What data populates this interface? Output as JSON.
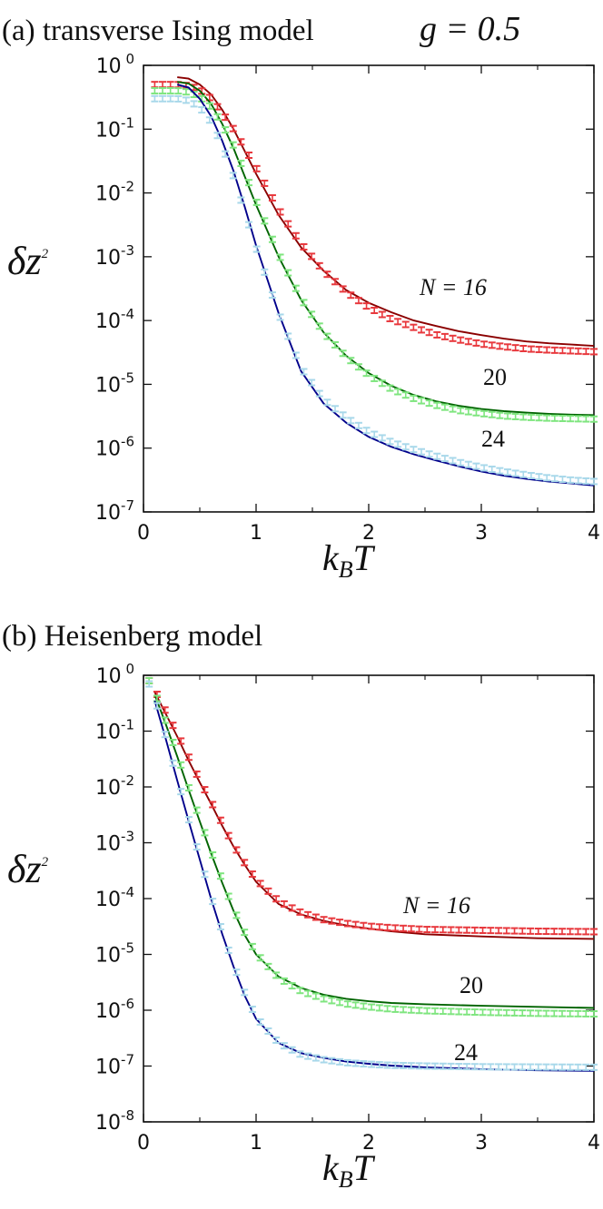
{
  "chart_data": [
    {
      "type": "line",
      "title": "(a) transverse Ising model",
      "subtitle": "g = 0.5",
      "xlabel": "k_B T",
      "ylabel": "δz²",
      "xlim": [
        0,
        4
      ],
      "ylim": [
        1e-07,
        1
      ],
      "yscale": "log",
      "grid": false,
      "x_ticks": [
        0,
        1,
        2,
        3,
        4
      ],
      "y_tick_exponents": [
        0,
        -1,
        -2,
        -3,
        -4,
        -5,
        -6,
        -7
      ],
      "annotations": [
        "N = 16",
        "20",
        "24"
      ],
      "series": [
        {
          "label": "N = 16",
          "kind": "theory",
          "color": "#8b0000",
          "x": [
            0.3,
            0.4,
            0.5,
            0.6,
            0.7,
            0.8,
            0.9,
            1.0,
            1.2,
            1.4,
            1.6,
            1.8,
            2.0,
            2.2,
            2.4,
            2.6,
            2.8,
            3.0,
            3.2,
            3.4,
            3.6,
            3.8,
            4.0
          ],
          "y": [
            0.65,
            0.62,
            0.5,
            0.35,
            0.2,
            0.1,
            0.045,
            0.02,
            0.0045,
            0.0014,
            0.0006,
            0.0003,
            0.00019,
            0.000135,
            0.0001,
            8.2e-05,
            6.8e-05,
            5.9e-05,
            5.2e-05,
            4.7e-05,
            4.4e-05,
            4.2e-05,
            4e-05
          ]
        },
        {
          "label": "N = 16",
          "kind": "simulation",
          "color": "#e8383d",
          "x": [
            0.1,
            0.2,
            0.3,
            0.4,
            0.5,
            0.6,
            0.7,
            0.8,
            0.9,
            1.0,
            1.2,
            1.4,
            1.6,
            1.8,
            2.0,
            2.2,
            2.4,
            2.6,
            2.8,
            3.0,
            3.2,
            3.4,
            3.6,
            3.8,
            4.0
          ],
          "y": [
            0.5,
            0.5,
            0.5,
            0.48,
            0.42,
            0.3,
            0.18,
            0.1,
            0.05,
            0.025,
            0.0055,
            0.0016,
            0.0006,
            0.00028,
            0.00016,
            0.000105,
            7.8e-05,
            6e-05,
            5e-05,
            4.3e-05,
            3.9e-05,
            3.6e-05,
            3.45e-05,
            3.35e-05,
            3.25e-05
          ]
        },
        {
          "label": "20",
          "kind": "theory",
          "color": "#006400",
          "x": [
            0.3,
            0.4,
            0.5,
            0.6,
            0.7,
            0.8,
            0.9,
            1.0,
            1.2,
            1.4,
            1.6,
            1.8,
            2.0,
            2.2,
            2.4,
            2.6,
            2.8,
            3.0,
            3.2,
            3.4,
            3.6,
            3.8,
            4.0
          ],
          "y": [
            0.55,
            0.52,
            0.4,
            0.25,
            0.12,
            0.05,
            0.018,
            0.0065,
            0.001,
            0.00021,
            6.5e-05,
            2.8e-05,
            1.5e-05,
            9.5e-06,
            6.8e-06,
            5.4e-06,
            4.6e-06,
            4.1e-06,
            3.8e-06,
            3.6e-06,
            3.45e-06,
            3.35e-06,
            3.3e-06
          ]
        },
        {
          "label": "20",
          "kind": "simulation",
          "color": "#7fe57f",
          "x": [
            0.1,
            0.2,
            0.3,
            0.4,
            0.5,
            0.6,
            0.7,
            0.8,
            0.9,
            1.0,
            1.2,
            1.4,
            1.6,
            1.8,
            2.0,
            2.2,
            2.4,
            2.6,
            2.8,
            3.0,
            3.2,
            3.4,
            3.6,
            3.8,
            4.0
          ],
          "y": [
            0.4,
            0.4,
            0.4,
            0.38,
            0.32,
            0.22,
            0.12,
            0.055,
            0.021,
            0.0075,
            0.0011,
            0.00022,
            6.5e-05,
            2.7e-05,
            1.4e-05,
            8.5e-06,
            6e-06,
            4.7e-06,
            3.9e-06,
            3.5e-06,
            3.2e-06,
            3.05e-06,
            2.95e-06,
            2.9e-06,
            2.85e-06
          ]
        },
        {
          "label": "24",
          "kind": "theory",
          "color": "#00008b",
          "x": [
            0.3,
            0.4,
            0.5,
            0.6,
            0.7,
            0.8,
            0.9,
            1.0,
            1.2,
            1.4,
            1.6,
            1.8,
            2.0,
            2.2,
            2.4,
            2.6,
            2.8,
            3.0,
            3.2,
            3.4,
            3.6,
            3.8,
            4.0
          ],
          "y": [
            0.5,
            0.45,
            0.3,
            0.16,
            0.065,
            0.022,
            0.006,
            0.0015,
            0.00013,
            1.6e-05,
            5e-06,
            2.5e-06,
            1.5e-06,
            1.05e-06,
            8e-07,
            6.4e-07,
            5.2e-07,
            4.3e-07,
            3.7e-07,
            3.3e-07,
            3e-07,
            2.8e-07,
            2.6e-07
          ]
        },
        {
          "label": "24",
          "kind": "simulation",
          "color": "#a8d8ea",
          "x": [
            0.1,
            0.2,
            0.3,
            0.4,
            0.5,
            0.6,
            0.7,
            0.8,
            0.9,
            1.0,
            1.2,
            1.4,
            1.6,
            1.8,
            2.0,
            2.2,
            2.4,
            2.6,
            2.8,
            3.0,
            3.2,
            3.4,
            3.6,
            3.8,
            4.0
          ],
          "y": [
            0.3,
            0.3,
            0.3,
            0.28,
            0.22,
            0.13,
            0.055,
            0.018,
            0.005,
            0.0014,
            0.00013,
            1.8e-05,
            5.8e-06,
            3e-06,
            1.8e-06,
            1.25e-06,
            9.5e-07,
            7.5e-07,
            6e-07,
            5e-07,
            4.3e-07,
            3.8e-07,
            3.4e-07,
            3.15e-07,
            3e-07
          ]
        }
      ]
    },
    {
      "type": "line",
      "title": "(b) Heisenberg model",
      "xlabel": "k_B T",
      "ylabel": "δz²",
      "xlim": [
        0,
        4
      ],
      "ylim": [
        1e-08,
        1
      ],
      "yscale": "log",
      "grid": false,
      "x_ticks": [
        0,
        1,
        2,
        3,
        4
      ],
      "y_tick_exponents": [
        0,
        -1,
        -2,
        -3,
        -4,
        -5,
        -6,
        -7,
        -8
      ],
      "annotations": [
        "N = 16",
        "20",
        "24"
      ],
      "series": [
        {
          "label": "N = 16",
          "kind": "theory",
          "color": "#8b0000",
          "x": [
            0.1,
            0.2,
            0.3,
            0.4,
            0.5,
            0.6,
            0.7,
            0.8,
            0.9,
            1.0,
            1.2,
            1.4,
            1.6,
            1.8,
            2.0,
            2.2,
            2.5,
            3.0,
            3.5,
            4.0
          ],
          "y": [
            0.5,
            0.2,
            0.08,
            0.03,
            0.012,
            0.005,
            0.002,
            0.00085,
            0.0004,
            0.0002,
            8e-05,
            5.2e-05,
            4e-05,
            3.3e-05,
            2.9e-05,
            2.6e-05,
            2.3e-05,
            2.1e-05,
            1.95e-05,
            1.9e-05
          ]
        },
        {
          "label": "N = 16",
          "kind": "simulation",
          "color": "#e8383d",
          "x": [
            0.05,
            0.1,
            0.2,
            0.3,
            0.4,
            0.5,
            0.6,
            0.7,
            0.8,
            0.9,
            1.0,
            1.2,
            1.4,
            1.6,
            1.8,
            2.0,
            2.2,
            2.5,
            3.0,
            3.5,
            4.0
          ],
          "y": [
            0.8,
            0.55,
            0.22,
            0.09,
            0.035,
            0.013,
            0.0055,
            0.0022,
            0.0009,
            0.00043,
            0.00022,
            9e-05,
            5.6e-05,
            4.2e-05,
            3.6e-05,
            3.2e-05,
            3e-05,
            2.8e-05,
            2.7e-05,
            2.6e-05,
            2.55e-05
          ]
        },
        {
          "label": "20",
          "kind": "theory",
          "color": "#006400",
          "x": [
            0.1,
            0.2,
            0.3,
            0.4,
            0.5,
            0.6,
            0.7,
            0.8,
            0.9,
            1.0,
            1.2,
            1.4,
            1.6,
            1.8,
            2.0,
            2.2,
            2.5,
            3.0,
            3.5,
            4.0
          ],
          "y": [
            0.45,
            0.13,
            0.035,
            0.009,
            0.0024,
            0.00065,
            0.00019,
            6e-05,
            2.2e-05,
            1e-05,
            4e-06,
            2.5e-06,
            1.9e-06,
            1.6e-06,
            1.45e-06,
            1.35e-06,
            1.28e-06,
            1.2e-06,
            1.15e-06,
            1.1e-06
          ]
        },
        {
          "label": "20",
          "kind": "simulation",
          "color": "#7fe57f",
          "x": [
            0.05,
            0.1,
            0.2,
            0.3,
            0.4,
            0.5,
            0.6,
            0.7,
            0.8,
            0.9,
            1.0,
            1.2,
            1.4,
            1.6,
            1.8,
            2.0,
            2.2,
            2.5,
            3.0,
            3.5,
            4.0
          ],
          "y": [
            0.8,
            0.5,
            0.14,
            0.038,
            0.01,
            0.0027,
            0.00072,
            0.00021,
            6.5e-05,
            2.4e-05,
            1.05e-05,
            3.8e-06,
            2.2e-06,
            1.6e-06,
            1.3e-06,
            1.15e-06,
            1.05e-06,
            9.8e-07,
            9.2e-07,
            8.8e-07,
            8.6e-07
          ]
        },
        {
          "label": "24",
          "kind": "theory",
          "color": "#00008b",
          "x": [
            0.1,
            0.2,
            0.3,
            0.4,
            0.5,
            0.6,
            0.7,
            0.8,
            0.9,
            1.0,
            1.2,
            1.4,
            1.6,
            1.8,
            2.0,
            2.2,
            2.5,
            3.0,
            3.5,
            4.0
          ],
          "y": [
            0.35,
            0.07,
            0.013,
            0.0025,
            0.0005,
            0.0001,
            2.3e-05,
            6e-06,
            1.8e-06,
            7e-07,
            2.6e-07,
            1.7e-07,
            1.4e-07,
            1.2e-07,
            1.1e-07,
            1.02e-07,
            9.5e-08,
            8.8e-08,
            8.4e-08,
            8.2e-08
          ]
        },
        {
          "label": "24",
          "kind": "simulation",
          "color": "#a8d8ea",
          "x": [
            0.05,
            0.1,
            0.2,
            0.3,
            0.4,
            0.5,
            0.6,
            0.7,
            0.8,
            0.9,
            1.0,
            1.2,
            1.4,
            1.6,
            1.8,
            2.0,
            2.2,
            2.5,
            3.0,
            3.5,
            4.0
          ],
          "y": [
            0.7,
            0.4,
            0.075,
            0.014,
            0.0027,
            0.00055,
            0.00011,
            2.5e-05,
            6.5e-06,
            2e-06,
            7.5e-07,
            2.6e-07,
            1.6e-07,
            1.3e-07,
            1.15e-07,
            1.08e-07,
            1.03e-07,
            1e-07,
            9.7e-08,
            9.6e-08,
            9.5e-08
          ]
        }
      ]
    }
  ]
}
